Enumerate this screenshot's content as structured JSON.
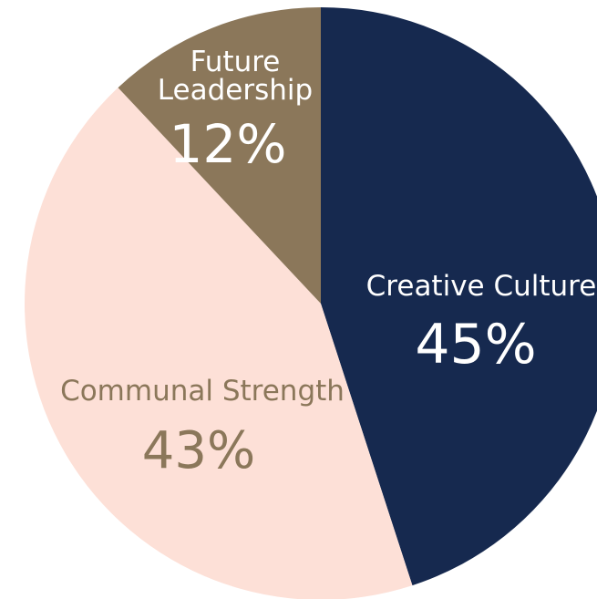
{
  "chart_data": {
    "type": "pie",
    "slices": [
      {
        "label": "Creative Culture",
        "value": 45,
        "value_label": "45%",
        "color": "#16294f",
        "text_color": "#ffffff"
      },
      {
        "label": "Communal Strength",
        "value": 43,
        "value_label": "43%",
        "color": "#fde0d7",
        "text_color": "#8b775a"
      },
      {
        "label": "Future Leadership",
        "value": 12,
        "value_label": "12%",
        "color": "#8b775a",
        "text_color": "#ffffff"
      }
    ],
    "start_angle": "top",
    "direction": "clockwise",
    "legend": "none"
  }
}
